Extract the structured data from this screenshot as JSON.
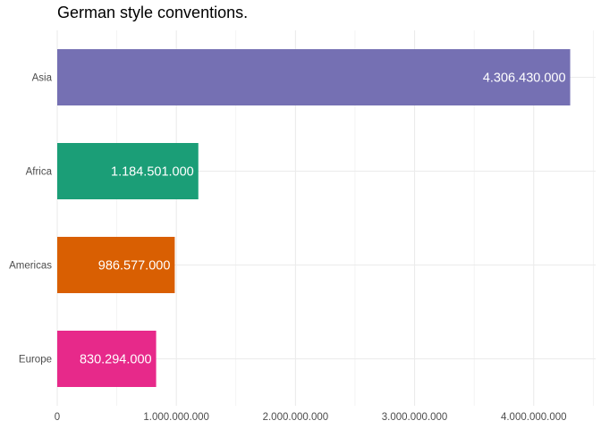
{
  "chart_data": {
    "type": "bar",
    "orientation": "horizontal",
    "title": "German style conventions.",
    "xlabel": "",
    "ylabel": "",
    "categories": [
      "Asia",
      "Africa",
      "Americas",
      "Europe"
    ],
    "values": [
      4306430000,
      1184501000,
      986577000,
      830294000
    ],
    "value_labels": [
      "4.306.430.000",
      "1.184.501.000",
      "986.577.000",
      "830.294.000"
    ],
    "colors": [
      "#7570b3",
      "#1b9e77",
      "#d95f02",
      "#e7298a"
    ],
    "xlim": [
      0,
      4520000000
    ],
    "x_ticks": [
      0,
      1000000000,
      2000000000,
      3000000000,
      4000000000
    ],
    "x_tick_labels": [
      "0",
      "1.000.000.000",
      "2.000.000.000",
      "3.000.000.000",
      "4.000.000.000"
    ],
    "grid": true,
    "legend": "none"
  }
}
